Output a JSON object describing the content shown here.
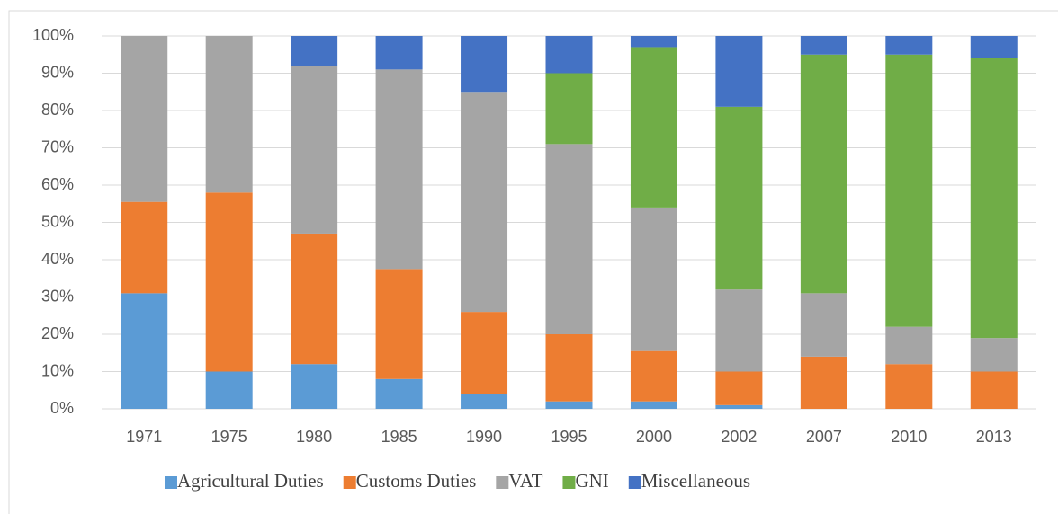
{
  "chart_data": {
    "type": "stacked_bar",
    "categories": [
      "1971",
      "1975",
      "1980",
      "1985",
      "1990",
      "1995",
      "2000",
      "2002",
      "2007",
      "2010",
      "2013"
    ],
    "series": [
      {
        "name": "Agricultural Duties",
        "color": "#5b9bd5",
        "values": [
          31,
          10,
          12,
          8,
          4,
          2,
          2,
          1,
          0,
          0,
          0
        ]
      },
      {
        "name": "Customs Duties",
        "color": "#ed7d31",
        "values": [
          24.5,
          48,
          35,
          29.5,
          22,
          18,
          13.5,
          9,
          14,
          12,
          10
        ]
      },
      {
        "name": "VAT",
        "color": "#a5a5a5",
        "values": [
          44.5,
          42,
          45,
          53.5,
          59,
          51,
          38.5,
          22,
          17,
          10,
          9
        ]
      },
      {
        "name": "GNI",
        "color": "#70ad47",
        "values": [
          0,
          0,
          0,
          0,
          0,
          19,
          43,
          49,
          64,
          73,
          75
        ]
      },
      {
        "name": "Miscellaneous",
        "color": "#4472c4",
        "values": [
          0,
          0,
          8,
          9,
          15,
          10,
          3,
          19,
          5,
          5,
          6
        ]
      }
    ],
    "ylim": [
      0,
      100
    ],
    "yticks": [
      {
        "value": 0,
        "label": "0%"
      },
      {
        "value": 10,
        "label": "10%"
      },
      {
        "value": 20,
        "label": "20%"
      },
      {
        "value": 30,
        "label": "30%"
      },
      {
        "value": 40,
        "label": "40%"
      },
      {
        "value": 50,
        "label": "50%"
      },
      {
        "value": 60,
        "label": "60%"
      },
      {
        "value": 70,
        "label": "70%"
      },
      {
        "value": 80,
        "label": "80%"
      },
      {
        "value": 90,
        "label": "90%"
      },
      {
        "value": 100,
        "label": "100%"
      }
    ],
    "grid": true,
    "legend": "bottom"
  }
}
